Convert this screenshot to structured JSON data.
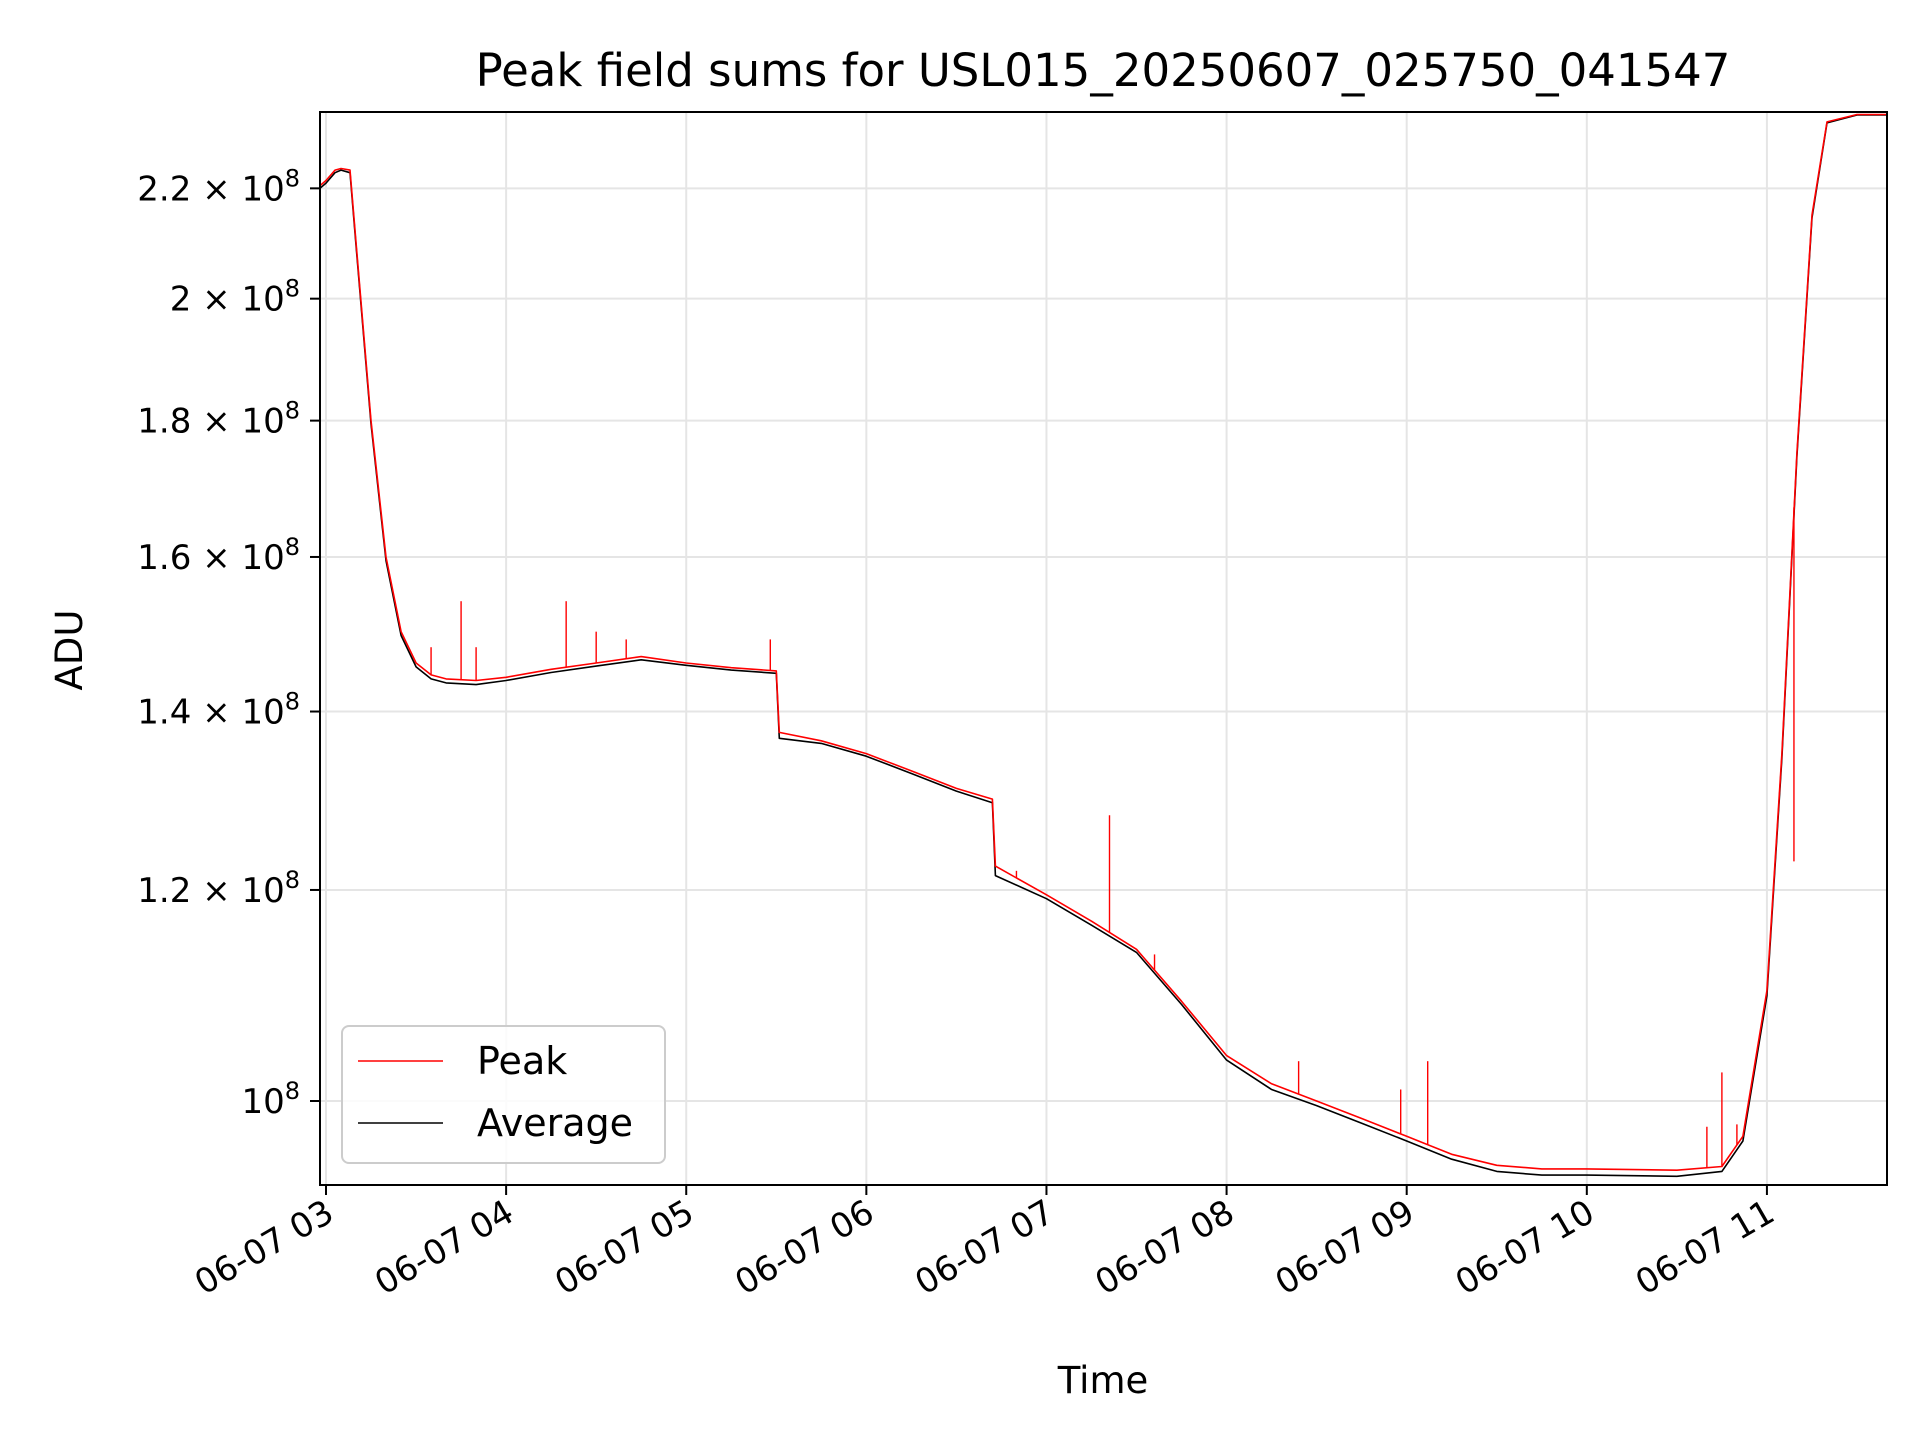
{
  "chart_data": {
    "type": "line",
    "title": "Peak field sums for USL015_20250607_025750_041547",
    "xlabel": "Time",
    "ylabel": "ADU",
    "xlim": [
      "2025-06-07 02:58",
      "2025-06-07 11:40"
    ],
    "ylim": [
      93000000,
      235000000
    ],
    "yscale": "log",
    "grid": true,
    "legend_position": "lower-left",
    "x_ticks": [
      "06-07 03",
      "06-07 04",
      "06-07 05",
      "06-07 06",
      "06-07 07",
      "06-07 08",
      "06-07 09",
      "06-07 10",
      "06-07 11"
    ],
    "y_ticks": [
      {
        "value": 100000000,
        "mantissa": "",
        "exp": "8"
      },
      {
        "value": 120000000,
        "mantissa": "1.2",
        "exp": "8"
      },
      {
        "value": 140000000,
        "mantissa": "1.4",
        "exp": "8"
      },
      {
        "value": 160000000,
        "mantissa": "1.6",
        "exp": "8"
      },
      {
        "value": 180000000,
        "mantissa": "1.8",
        "exp": "8"
      },
      {
        "value": 200000000,
        "mantissa": "2",
        "exp": "8"
      },
      {
        "value": 220000000,
        "mantissa": "2.2",
        "exp": "8"
      }
    ],
    "y_tick_base": "10",
    "y_tick_times": "×",
    "series": [
      {
        "name": "Peak",
        "color": "#ff0000",
        "points": [
          [
            "02:58",
            220500000.0
          ],
          [
            "03:00",
            221500000.0
          ],
          [
            "03:03",
            223500000.0
          ],
          [
            "03:05",
            223800000.0
          ],
          [
            "03:08",
            223500000.0
          ],
          [
            "03:10",
            210000000.0
          ],
          [
            "03:15",
            180000000.0
          ],
          [
            "03:20",
            160000000.0
          ],
          [
            "03:25",
            150000000.0
          ],
          [
            "03:30",
            146000000.0
          ],
          [
            "03:35",
            144500000.0
          ],
          [
            "03:40",
            144000000.0
          ],
          [
            "03:50",
            143800000.0
          ],
          [
            "04:00",
            144200000.0
          ],
          [
            "04:15",
            145200000.0
          ],
          [
            "04:30",
            146000000.0
          ],
          [
            "04:45",
            146800000.0
          ],
          [
            "05:00",
            146000000.0
          ],
          [
            "05:15",
            145400000.0
          ],
          [
            "05:30",
            145000000.0
          ],
          [
            "05:31",
            137500000.0
          ],
          [
            "05:45",
            136500000.0
          ],
          [
            "06:00",
            135000000.0
          ],
          [
            "06:15",
            133000000.0
          ],
          [
            "06:30",
            131000000.0
          ],
          [
            "06:42",
            129800000.0
          ],
          [
            "06:43",
            122500000.0
          ],
          [
            "07:00",
            119500000.0
          ],
          [
            "07:15",
            116800000.0
          ],
          [
            "07:30",
            114000000.0
          ],
          [
            "07:45",
            109000000.0
          ],
          [
            "08:00",
            104000000.0
          ],
          [
            "08:15",
            101500000.0
          ],
          [
            "08:30",
            100000000.0
          ],
          [
            "08:45",
            98500000.0
          ],
          [
            "09:00",
            97000000.0
          ],
          [
            "09:15",
            95500000.0
          ],
          [
            "09:30",
            94600000.0
          ],
          [
            "09:45",
            94300000.0
          ],
          [
            "10:00",
            94300000.0
          ],
          [
            "10:30",
            94200000.0
          ],
          [
            "10:45",
            94500000.0
          ],
          [
            "10:52",
            97000000.0
          ],
          [
            "11:00",
            110000000.0
          ],
          [
            "11:05",
            135000000.0
          ],
          [
            "11:10",
            175000000.0
          ],
          [
            "11:15",
            215000000.0
          ],
          [
            "11:20",
            233000000.0
          ],
          [
            "11:30",
            234500000.0
          ],
          [
            "11:40",
            234500000.0
          ]
        ],
        "spikes": [
          [
            "03:35",
            148000000.0
          ],
          [
            "03:45",
            154000000.0
          ],
          [
            "03:50",
            148000000.0
          ],
          [
            "04:20",
            154000000.0
          ],
          [
            "04:30",
            150000000.0
          ],
          [
            "04:40",
            149000000.0
          ],
          [
            "05:28",
            149000000.0
          ],
          [
            "06:50",
            122000000.0
          ],
          [
            "07:21",
            128000000.0
          ],
          [
            "07:36",
            113500000.0
          ],
          [
            "08:24",
            103500000.0
          ],
          [
            "08:58",
            101000000.0
          ],
          [
            "09:07",
            103500000.0
          ],
          [
            "10:40",
            97800000.0
          ],
          [
            "10:45",
            102500000.0
          ],
          [
            "10:50",
            98000000.0
          ],
          [
            "11:09",
            123000000.0
          ]
        ]
      },
      {
        "name": "Average",
        "color": "#000000",
        "points": [
          [
            "02:58",
            220000000.0
          ],
          [
            "03:00",
            221000000.0
          ],
          [
            "03:03",
            223000000.0
          ],
          [
            "03:05",
            223500000.0
          ],
          [
            "03:08",
            223000000.0
          ],
          [
            "03:10",
            209500000.0
          ],
          [
            "03:15",
            179500000.0
          ],
          [
            "03:20",
            159500000.0
          ],
          [
            "03:25",
            149500000.0
          ],
          [
            "03:30",
            145500000.0
          ],
          [
            "03:35",
            144000000.0
          ],
          [
            "03:40",
            143500000.0
          ],
          [
            "03:50",
            143300000.0
          ],
          [
            "04:00",
            143800000.0
          ],
          [
            "04:15",
            144800000.0
          ],
          [
            "04:30",
            145600000.0
          ],
          [
            "04:45",
            146400000.0
          ],
          [
            "05:00",
            145700000.0
          ],
          [
            "05:15",
            145100000.0
          ],
          [
            "05:30",
            144700000.0
          ],
          [
            "05:31",
            136800000.0
          ],
          [
            "05:45",
            136200000.0
          ],
          [
            "06:00",
            134700000.0
          ],
          [
            "06:15",
            132700000.0
          ],
          [
            "06:30",
            130700000.0
          ],
          [
            "06:42",
            129400000.0
          ],
          [
            "06:43",
            121500000.0
          ],
          [
            "07:00",
            119100000.0
          ],
          [
            "07:15",
            116400000.0
          ],
          [
            "07:30",
            113700000.0
          ],
          [
            "07:45",
            108700000.0
          ],
          [
            "08:00",
            103600000.0
          ],
          [
            "08:15",
            101000000.0
          ],
          [
            "08:30",
            99600000.0
          ],
          [
            "08:45",
            98100000.0
          ],
          [
            "09:00",
            96600000.0
          ],
          [
            "09:15",
            95100000.0
          ],
          [
            "09:30",
            94100000.0
          ],
          [
            "09:45",
            93800000.0
          ],
          [
            "10:00",
            93800000.0
          ],
          [
            "10:30",
            93700000.0
          ],
          [
            "10:45",
            94100000.0
          ],
          [
            "10:52",
            96600000.0
          ],
          [
            "11:00",
            109500000.0
          ],
          [
            "11:05",
            134500000.0
          ],
          [
            "11:10",
            174500000.0
          ],
          [
            "11:15",
            214500000.0
          ],
          [
            "11:20",
            232800000.0
          ],
          [
            "11:30",
            234400000.0
          ],
          [
            "11:40",
            234400000.0
          ]
        ]
      }
    ]
  }
}
